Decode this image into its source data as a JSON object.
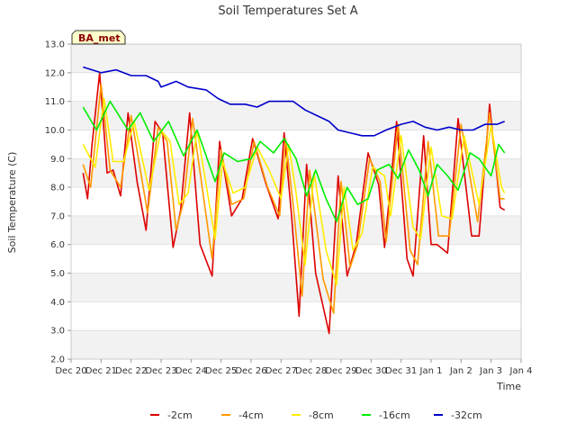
{
  "chart_data": {
    "type": "line",
    "title": "Soil Temperatures Set A",
    "xlabel": "Time",
    "ylabel": "Soil Temperature (C)",
    "site_label": "BA_met",
    "ylim": [
      2.0,
      13.0
    ],
    "xlim": [
      0,
      15
    ],
    "yticks": [
      "2.0",
      "3.0",
      "4.0",
      "5.0",
      "6.0",
      "7.0",
      "8.0",
      "9.0",
      "10.0",
      "11.0",
      "12.0",
      "13.0"
    ],
    "xticks": [
      {
        "x": 0,
        "label": "Dec 20"
      },
      {
        "x": 1,
        "label": "Dec 21"
      },
      {
        "x": 2,
        "label": "Dec 22"
      },
      {
        "x": 3,
        "label": "Dec 23"
      },
      {
        "x": 4,
        "label": "Dec 24"
      },
      {
        "x": 5,
        "label": "Dec 25"
      },
      {
        "x": 6,
        "label": "Dec 26"
      },
      {
        "x": 7,
        "label": "Dec 27"
      },
      {
        "x": 8,
        "label": "Dec 28"
      },
      {
        "x": 9,
        "label": "Dec 29"
      },
      {
        "x": 10,
        "label": "Dec 30"
      },
      {
        "x": 11,
        "label": "Dec 31"
      },
      {
        "x": 12,
        "label": "Jan 1"
      },
      {
        "x": 13,
        "label": "Jan 2"
      },
      {
        "x": 14,
        "label": "Jan 3"
      },
      {
        "x": 15,
        "label": "Jan 4"
      }
    ],
    "grid": true,
    "legend_position": "bottom",
    "series": [
      {
        "name": "-2cm",
        "color": "#dd0000",
        "x": [
          0.4,
          0.55,
          0.7,
          0.95,
          1.2,
          1.4,
          1.65,
          1.9,
          2.2,
          2.5,
          2.8,
          3.05,
          3.4,
          3.65,
          3.95,
          4.3,
          4.7,
          4.95,
          5.35,
          5.7,
          6.05,
          6.5,
          6.9,
          7.1,
          7.35,
          7.6,
          7.85,
          8.15,
          8.6,
          8.9,
          9.2,
          9.5,
          9.9,
          10.25,
          10.45,
          10.85,
          11.2,
          11.4,
          11.75,
          12.0,
          12.2,
          12.55,
          12.9,
          13.35,
          13.6,
          13.95,
          14.3,
          14.45
        ],
        "y": [
          8.5,
          7.6,
          9.5,
          12.0,
          8.5,
          8.6,
          7.7,
          10.6,
          8.2,
          6.5,
          10.3,
          9.9,
          5.9,
          7.2,
          10.6,
          6.0,
          4.9,
          9.6,
          7.0,
          7.6,
          9.7,
          8.1,
          6.9,
          9.9,
          7.0,
          3.5,
          8.8,
          5.0,
          2.9,
          8.4,
          4.9,
          6.0,
          9.2,
          8.1,
          5.9,
          10.3,
          5.5,
          4.9,
          9.8,
          6.0,
          6.0,
          5.7,
          10.4,
          6.3,
          6.3,
          10.9,
          7.3,
          7.2
        ]
      },
      {
        "name": "-4cm",
        "color": "#ff9900",
        "x": [
          0.4,
          0.65,
          1.0,
          1.3,
          1.65,
          2.0,
          2.55,
          2.9,
          3.2,
          3.5,
          3.75,
          4.05,
          4.7,
          5.0,
          5.35,
          5.75,
          6.1,
          6.55,
          6.95,
          7.15,
          7.4,
          7.7,
          7.95,
          8.4,
          8.75,
          9.0,
          9.3,
          9.55,
          9.95,
          10.3,
          10.5,
          10.9,
          11.3,
          11.55,
          11.9,
          12.25,
          12.6,
          13.0,
          13.55,
          13.95,
          14.3,
          14.45
        ],
        "y": [
          8.8,
          8.0,
          11.6,
          8.6,
          8.0,
          10.5,
          7.1,
          10.1,
          9.6,
          6.5,
          7.5,
          10.4,
          5.5,
          9.3,
          7.4,
          7.6,
          9.6,
          8.0,
          7.0,
          9.7,
          7.4,
          4.2,
          8.6,
          4.8,
          3.6,
          8.2,
          5.2,
          6.0,
          9.0,
          8.2,
          6.1,
          10.2,
          5.8,
          5.3,
          9.6,
          6.3,
          6.3,
          10.2,
          6.8,
          10.6,
          7.6,
          7.6
        ]
      },
      {
        "name": "-8cm",
        "color": "#ffee00",
        "x": [
          0.4,
          0.8,
          1.1,
          1.4,
          1.75,
          2.1,
          2.6,
          3.0,
          3.3,
          3.6,
          3.9,
          4.2,
          4.8,
          5.05,
          5.4,
          5.8,
          6.2,
          6.6,
          7.0,
          7.25,
          7.5,
          7.8,
          8.1,
          8.5,
          8.85,
          9.1,
          9.4,
          9.7,
          10.05,
          10.45,
          10.65,
          11.0,
          11.4,
          11.65,
          12.0,
          12.35,
          12.7,
          13.1,
          13.6,
          14.0,
          14.35,
          14.45
        ],
        "y": [
          9.5,
          8.7,
          11.1,
          8.9,
          8.9,
          10.3,
          7.9,
          10.0,
          9.6,
          7.4,
          7.8,
          10.0,
          6.2,
          8.9,
          7.8,
          8.0,
          9.4,
          8.6,
          7.6,
          9.5,
          7.8,
          5.3,
          8.5,
          5.8,
          4.6,
          8.0,
          5.8,
          6.4,
          8.7,
          8.4,
          7.0,
          9.8,
          6.6,
          6.2,
          9.4,
          7.0,
          6.9,
          9.8,
          7.4,
          10.2,
          8.0,
          7.8
        ]
      },
      {
        "name": "-16cm",
        "color": "#00ee00",
        "x": [
          0.4,
          0.85,
          1.3,
          1.9,
          2.3,
          2.75,
          3.25,
          3.75,
          4.2,
          4.8,
          5.1,
          5.55,
          6.0,
          6.3,
          6.75,
          7.1,
          7.5,
          7.85,
          8.15,
          8.5,
          8.85,
          9.2,
          9.55,
          9.9,
          10.2,
          10.6,
          10.9,
          11.25,
          11.6,
          11.9,
          12.2,
          12.55,
          12.9,
          13.3,
          13.6,
          14.0,
          14.25,
          14.45
        ],
        "y": [
          10.8,
          10.0,
          11.0,
          10.0,
          10.6,
          9.6,
          10.3,
          9.1,
          10.0,
          8.2,
          9.2,
          8.9,
          9.0,
          9.6,
          9.2,
          9.7,
          9.0,
          7.7,
          8.6,
          7.6,
          6.8,
          8.0,
          7.4,
          7.6,
          8.6,
          8.8,
          8.3,
          9.3,
          8.6,
          7.7,
          8.8,
          8.4,
          7.9,
          9.2,
          9.0,
          8.4,
          9.5,
          9.2
        ]
      },
      {
        "name": "-32cm",
        "color": "#0000cc",
        "x": [
          0.4,
          0.7,
          1.0,
          1.5,
          2.0,
          2.5,
          2.9,
          3.0,
          3.5,
          3.9,
          4.5,
          4.9,
          5.3,
          5.8,
          6.2,
          6.6,
          7.0,
          7.4,
          7.8,
          8.2,
          8.6,
          8.9,
          9.3,
          9.7,
          10.1,
          10.5,
          11.0,
          11.4,
          11.8,
          12.2,
          12.6,
          13.0,
          13.4,
          13.8,
          14.2,
          14.45
        ],
        "y": [
          12.2,
          12.1,
          12.0,
          12.1,
          11.9,
          11.9,
          11.7,
          11.5,
          11.7,
          11.5,
          11.4,
          11.1,
          10.9,
          10.9,
          10.8,
          11.0,
          11.0,
          11.0,
          10.7,
          10.5,
          10.3,
          10.0,
          9.9,
          9.8,
          9.8,
          10.0,
          10.2,
          10.3,
          10.1,
          10.0,
          10.1,
          10.0,
          10.0,
          10.2,
          10.2,
          10.3
        ]
      }
    ]
  }
}
